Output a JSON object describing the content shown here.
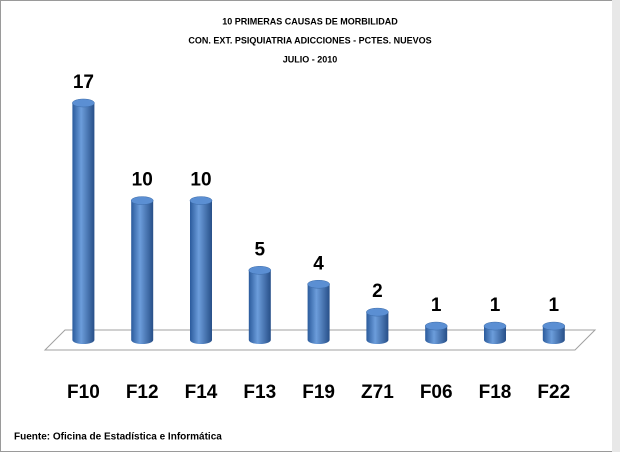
{
  "chart_data": {
    "type": "bar3d",
    "title": [
      "10 PRIMERAS CAUSAS DE MORBILIDAD",
      "CON. EXT. PSIQUIATRIA ADICCIONES - PCTES. NUEVOS",
      "JULIO - 2010"
    ],
    "categories": [
      "F10",
      "F12",
      "F14",
      "F13",
      "F19",
      "Z71",
      "F06",
      "F18",
      "F22"
    ],
    "values": [
      17,
      10,
      10,
      5,
      4,
      2,
      1,
      1,
      1
    ],
    "color": "#4a7ebf",
    "source": "Fuente: Oficina de Estadística e Informática"
  }
}
